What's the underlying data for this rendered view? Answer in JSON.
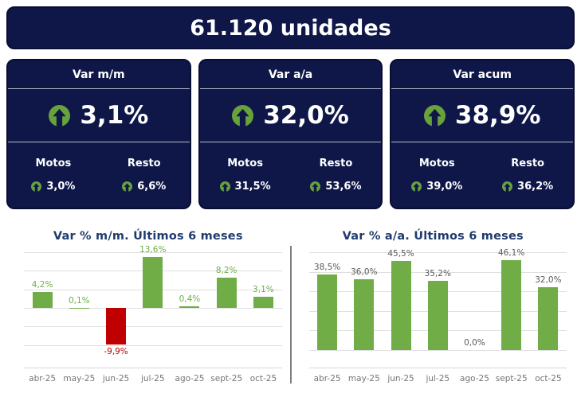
{
  "header": {
    "title": "61.120 unidades"
  },
  "cards": [
    {
      "title": "Var m/m",
      "value": "3,1%",
      "breakdown": {
        "motos_label": "Motos",
        "resto_label": "Resto",
        "motos_value": "3,0%",
        "resto_value": "6,6%"
      }
    },
    {
      "title": "Var a/a",
      "value": "32,0%",
      "breakdown": {
        "motos_label": "Motos",
        "resto_label": "Resto",
        "motos_value": "31,5%",
        "resto_value": "53,6%"
      }
    },
    {
      "title": "Var acum",
      "value": "38,9%",
      "breakdown": {
        "motos_label": "Motos",
        "resto_label": "Resto",
        "motos_value": "39,0%",
        "resto_value": "36,2%"
      }
    }
  ],
  "icons": {
    "up_arrow": "up-arrow-in-circle"
  },
  "colors": {
    "navy": "#0e1748",
    "card_border": "#090d33",
    "arrow_green": "#68a23d",
    "bar_green": "#70ad47",
    "bar_red": "#c00000",
    "chart_title_navy": "#1f3b6e",
    "label_gray": "#595959",
    "axis_gray": "#757575",
    "gridline_gray": "#e0e0e0",
    "divider_gray": "#7f7f7f"
  },
  "chart_data": [
    {
      "type": "bar",
      "title": "Var % m/m. Últimos 6 meses",
      "categories": [
        "abr-25",
        "may-25",
        "jun-25",
        "jul-25",
        "ago-25",
        "sept-25",
        "oct-25"
      ],
      "values": [
        4.2,
        0.1,
        -9.9,
        13.6,
        0.4,
        8.2,
        3.1
      ],
      "labels": [
        "4,2%",
        "0,1%",
        "-9,9%",
        "13,6%",
        "0,4%",
        "8,2%",
        "3,1%"
      ],
      "label_colors": [
        "#70ad47",
        "#70ad47",
        "#c00000",
        "#70ad47",
        "#70ad47",
        "#70ad47",
        "#70ad47"
      ],
      "bar_color": "#70ad47",
      "negative_color": "#c00000",
      "ylim": [
        -16,
        16
      ],
      "gridlines": [
        15,
        10,
        5,
        0,
        -5,
        -10
      ],
      "xlabel": "",
      "ylabel": "",
      "grid": true,
      "legend": false
    },
    {
      "type": "bar",
      "title": "Var % a/a. Últimos 6 meses",
      "categories": [
        "abr-25",
        "may-25",
        "jun-25",
        "jul-25",
        "ago-25",
        "sept-25",
        "oct-25"
      ],
      "values": [
        38.5,
        36.0,
        45.5,
        35.2,
        0.0,
        46.1,
        32.0
      ],
      "labels": [
        "38,5%",
        "36,0%",
        "45,5%",
        "35,2%",
        "0,0%",
        "46,1%",
        "32,0%"
      ],
      "label_colors": [
        "#595959",
        "#595959",
        "#595959",
        "#595959",
        "#595959",
        "#595959",
        "#595959"
      ],
      "bar_color": "#70ad47",
      "negative_color": "#c00000",
      "ylim": [
        -9,
        52
      ],
      "gridlines": [
        50,
        40,
        30,
        20,
        10,
        0
      ],
      "xlabel": "",
      "ylabel": "",
      "grid": true,
      "legend": false
    }
  ]
}
